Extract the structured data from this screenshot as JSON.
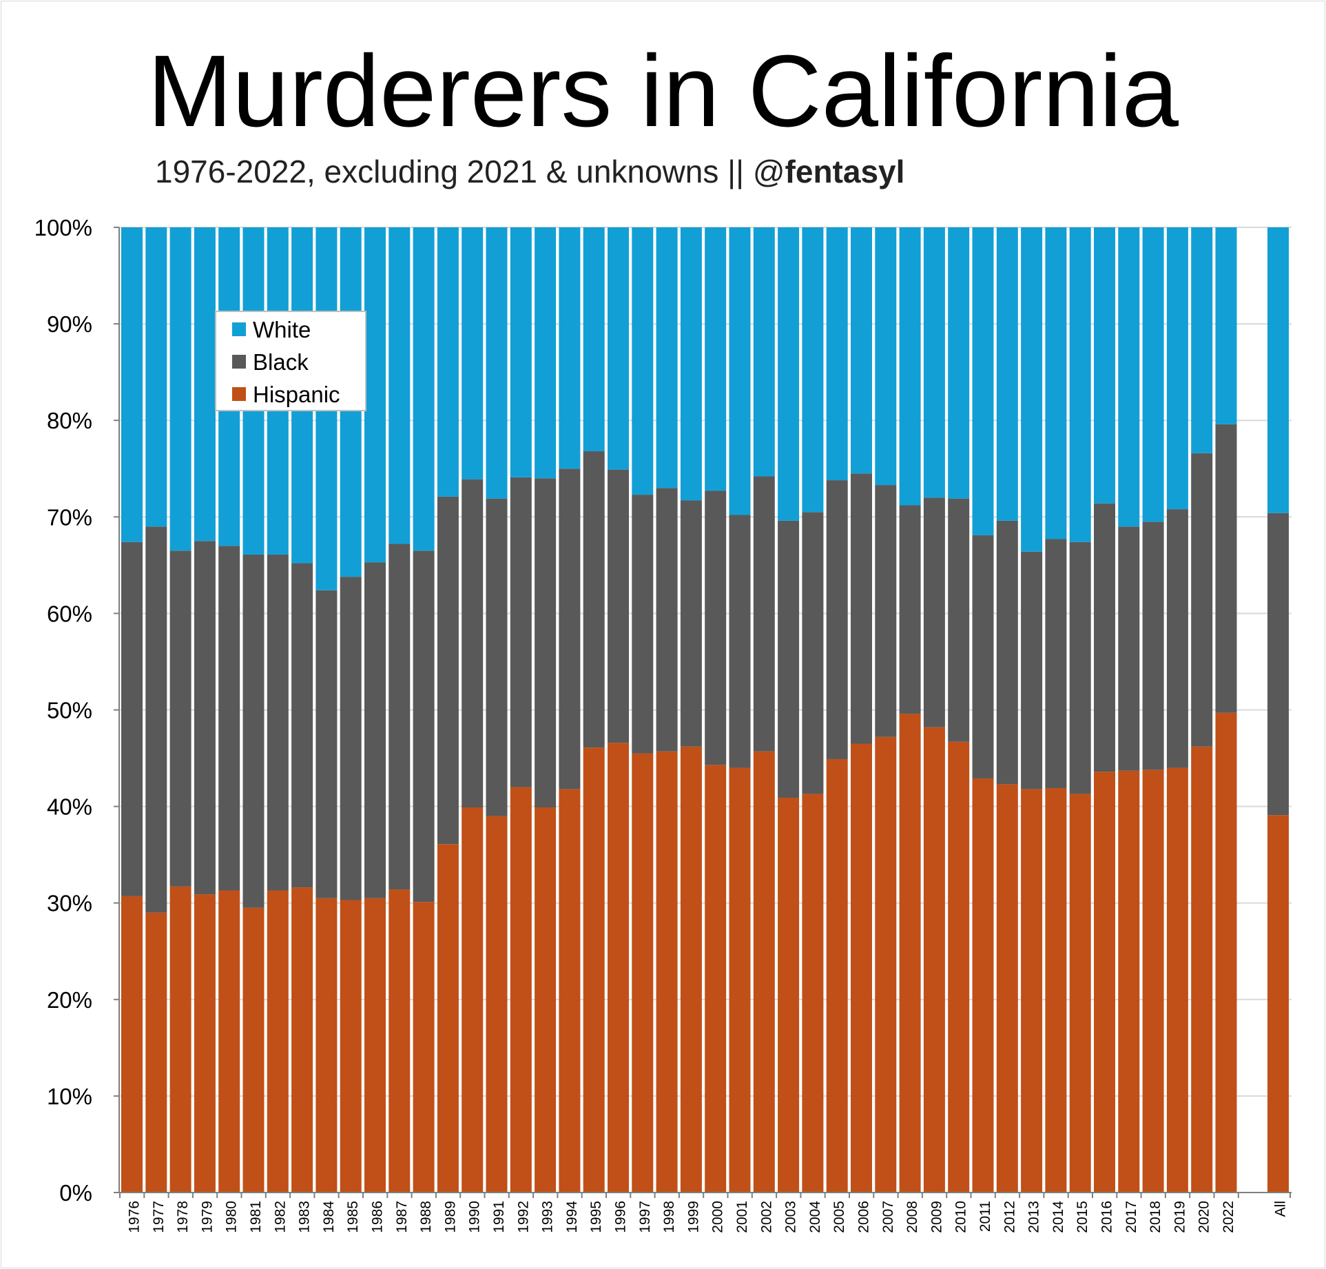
{
  "title": "Murderers in California",
  "subtitle": {
    "text": "1976-2022, excluding 2021 & unknowns || @",
    "handle": "fentasyl"
  },
  "colors": {
    "white": "#129fd6",
    "black": "#595959",
    "hispanic": "#c05018",
    "grid": "#d9d9d9",
    "axis": "#7f7f7f"
  },
  "chart_data": {
    "type": "bar",
    "stacked": true,
    "title": "Murderers in California",
    "subtitle": "1976-2022, excluding 2021 & unknowns || @fentasyl",
    "xlabel": "",
    "ylabel": "",
    "ylim": [
      0,
      100
    ],
    "yticks": [
      "0%",
      "10%",
      "20%",
      "30%",
      "40%",
      "50%",
      "60%",
      "70%",
      "80%",
      "90%",
      "100%"
    ],
    "legend_position": "top-left",
    "categories": [
      "1976",
      "1977",
      "1978",
      "1979",
      "1980",
      "1981",
      "1982",
      "1983",
      "1984",
      "1985",
      "1986",
      "1987",
      "1988",
      "1989",
      "1990",
      "1991",
      "1992",
      "1993",
      "1994",
      "1995",
      "1996",
      "1997",
      "1998",
      "1999",
      "2000",
      "2001",
      "2002",
      "2003",
      "2004",
      "2005",
      "2006",
      "2007",
      "2008",
      "2009",
      "2010",
      "2011",
      "2012",
      "2013",
      "2014",
      "2015",
      "2016",
      "2017",
      "2018",
      "2019",
      "2020",
      "2022",
      "All"
    ],
    "series": [
      {
        "name": "Hispanic",
        "color": "#c05018",
        "values": [
          30.7,
          29.0,
          31.7,
          30.9,
          31.3,
          29.5,
          31.3,
          31.6,
          30.5,
          30.3,
          30.5,
          31.4,
          30.1,
          36.1,
          39.9,
          39.0,
          42.0,
          39.9,
          41.8,
          46.1,
          46.6,
          45.5,
          45.7,
          46.2,
          44.3,
          44.0,
          45.7,
          40.9,
          41.3,
          44.9,
          46.5,
          47.2,
          49.6,
          48.2,
          46.7,
          42.9,
          42.3,
          41.8,
          41.9,
          41.3,
          43.6,
          43.7,
          43.8,
          44.0,
          46.2,
          49.7,
          39.1
        ]
      },
      {
        "name": "Black",
        "color": "#595959",
        "values": [
          36.7,
          40.0,
          34.8,
          36.6,
          35.7,
          36.6,
          34.8,
          33.6,
          31.9,
          33.5,
          34.8,
          35.8,
          36.4,
          36.0,
          34.0,
          32.9,
          32.1,
          34.1,
          33.2,
          30.7,
          28.3,
          26.8,
          27.3,
          25.5,
          28.4,
          26.2,
          28.5,
          28.7,
          29.2,
          28.9,
          28.0,
          26.1,
          21.6,
          23.8,
          25.2,
          25.2,
          27.3,
          24.6,
          25.8,
          26.1,
          27.8,
          25.3,
          25.7,
          26.8,
          30.4,
          29.9,
          31.3
        ]
      },
      {
        "name": "White",
        "color": "#129fd6",
        "values": [
          32.6,
          31.0,
          33.5,
          32.5,
          33.0,
          33.9,
          33.9,
          34.8,
          37.6,
          36.2,
          34.7,
          32.8,
          33.5,
          27.9,
          26.1,
          28.1,
          25.9,
          26.0,
          25.0,
          23.2,
          25.1,
          27.7,
          27.0,
          28.3,
          27.3,
          29.8,
          25.8,
          30.4,
          29.5,
          26.2,
          25.5,
          26.7,
          28.8,
          28.0,
          28.1,
          31.9,
          30.4,
          33.6,
          32.3,
          32.6,
          28.6,
          31.0,
          30.5,
          29.2,
          23.4,
          20.4,
          29.6
        ]
      }
    ],
    "legend": [
      "White",
      "Black",
      "Hispanic"
    ]
  }
}
